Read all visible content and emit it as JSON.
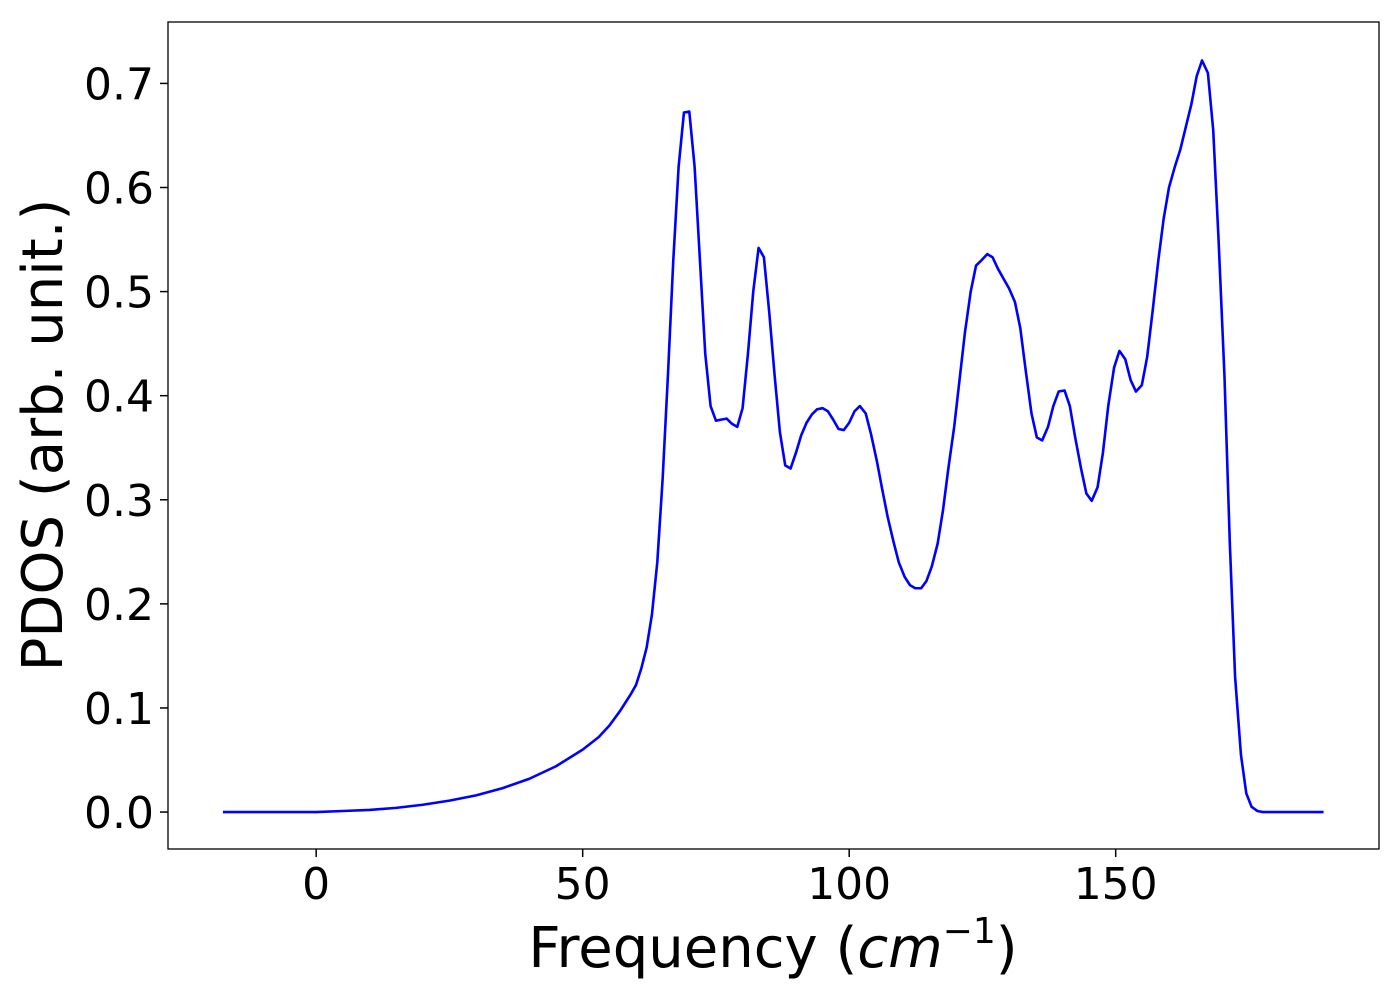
{
  "chart_data": {
    "type": "line",
    "xlabel": [
      "Frequency (",
      "cm",
      "−1",
      ")"
    ],
    "ylabel": "PDOS (arb. unit.)",
    "xlim": [
      -27.8,
      199.4
    ],
    "ylim": [
      -0.0355,
      0.759
    ],
    "xticks": [
      0,
      50,
      100,
      150
    ],
    "yticks": [
      {
        "value": 0,
        "label": "0.0"
      },
      0.1,
      0.2,
      0.3,
      0.4,
      0.5,
      0.6,
      0.7
    ],
    "x": [
      -17.5,
      0,
      5,
      10,
      15,
      20,
      25,
      30,
      35,
      40,
      45,
      50,
      53,
      55,
      57,
      58,
      59,
      60,
      61,
      62,
      63,
      64,
      65,
      66,
      67,
      68,
      69,
      70,
      71,
      72,
      73,
      74,
      75,
      76,
      77,
      78,
      79,
      80,
      81,
      82,
      83,
      84,
      85,
      86,
      87,
      88,
      89,
      90,
      91,
      92,
      93,
      94,
      95,
      96,
      97,
      98,
      99,
      100,
      101,
      102,
      103.1,
      104.1,
      105.2,
      106.2,
      107.2,
      108.3,
      109.3,
      110.4,
      111.4,
      112.4,
      113.5,
      114.5,
      115.5,
      116.6,
      117.6,
      118.6,
      119.7,
      120.7,
      121.7,
      122.8,
      123.8,
      124.8,
      125.9,
      126.9,
      127.9,
      129.0,
      130.0,
      131.1,
      132.1,
      133.1,
      134.2,
      135.2,
      136.2,
      137.3,
      138.3,
      139.3,
      140.4,
      141.4,
      142.4,
      143.5,
      144.5,
      145.5,
      146.6,
      147.6,
      148.6,
      149.7,
      150.7,
      151.8,
      152.8,
      153.8,
      154.9,
      155.9,
      156.9,
      158.0,
      159.0,
      160.0,
      161.1,
      162.1,
      163.1,
      164.2,
      165.2,
      166.2,
      167.3,
      168.3,
      169.3,
      170.4,
      171.4,
      172.4,
      173.5,
      174.5,
      175.5,
      176.6,
      177.6,
      189
    ],
    "series": [
      {
        "color": "#0000ff",
        "values": [
          0,
          0,
          0.001,
          0.002,
          0.004,
          0.007,
          0.011,
          0.016,
          0.023,
          0.032,
          0.044,
          0.06,
          0.072,
          0.083,
          0.097,
          0.105,
          0.113,
          0.122,
          0.138,
          0.158,
          0.19,
          0.24,
          0.32,
          0.42,
          0.53,
          0.62,
          0.672,
          0.673,
          0.62,
          0.53,
          0.44,
          0.39,
          0.376,
          0.377,
          0.378,
          0.373,
          0.37,
          0.388,
          0.44,
          0.5,
          0.542,
          0.533,
          0.48,
          0.42,
          0.365,
          0.333,
          0.33,
          0.345,
          0.362,
          0.374,
          0.382,
          0.387,
          0.388,
          0.385,
          0.377,
          0.368,
          0.367,
          0.374,
          0.385,
          0.39,
          0.383,
          0.363,
          0.337,
          0.31,
          0.284,
          0.26,
          0.24,
          0.226,
          0.218,
          0.215,
          0.215,
          0.222,
          0.236,
          0.258,
          0.29,
          0.33,
          0.37,
          0.415,
          0.46,
          0.5,
          0.525,
          0.53,
          0.536,
          0.533,
          0.522,
          0.512,
          0.503,
          0.49,
          0.465,
          0.425,
          0.383,
          0.36,
          0.357,
          0.37,
          0.39,
          0.404,
          0.405,
          0.39,
          0.36,
          0.33,
          0.306,
          0.299,
          0.312,
          0.345,
          0.39,
          0.427,
          0.443,
          0.435,
          0.415,
          0.404,
          0.41,
          0.437,
          0.48,
          0.53,
          0.57,
          0.6,
          0.62,
          0.636,
          0.657,
          0.68,
          0.707,
          0.722,
          0.71,
          0.655,
          0.55,
          0.42,
          0.26,
          0.13,
          0.055,
          0.018,
          0.005,
          0.001,
          0,
          0
        ]
      }
    ]
  }
}
